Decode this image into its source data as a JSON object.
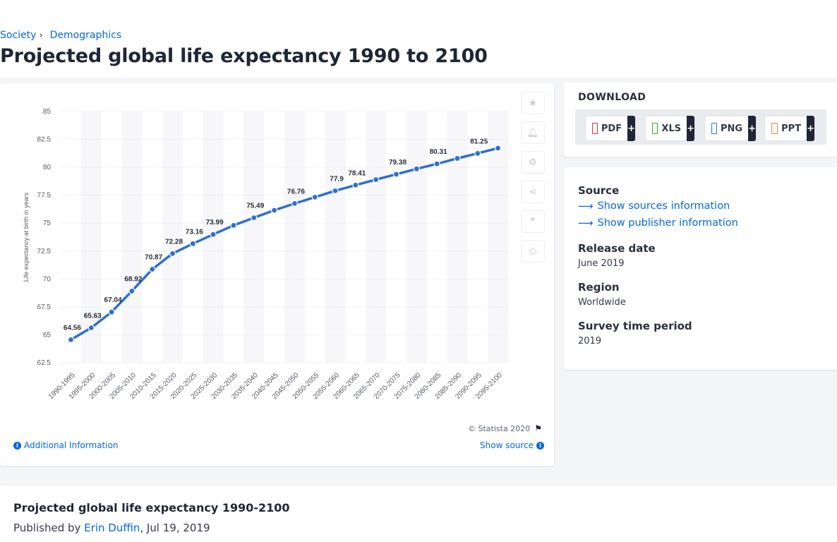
{
  "breadcrumb": {
    "items": [
      "Society",
      "Demographics"
    ],
    "separator": "›"
  },
  "page_title": "Projected global life expectancy 1990 to 2100",
  "chart_data": {
    "type": "line",
    "ylabel": "Life expectancy at birth in years",
    "ylim": [
      62.5,
      85
    ],
    "yticks": [
      "62.5",
      "65",
      "67.5",
      "70",
      "72.5",
      "75",
      "77.5",
      "80",
      "82.5",
      "85"
    ],
    "categories": [
      "1990-1995",
      "1995-2000",
      "2000-2005",
      "2005-2010",
      "2010-2015",
      "2015-2020",
      "2020-2025",
      "2025-2030",
      "2030-2035",
      "2035-2040",
      "2040-2045",
      "2045-2050",
      "2050-2055",
      "2055-2060",
      "2060-2065",
      "2065-2070",
      "2070-2075",
      "2075-2080",
      "2080-2085",
      "2085-2090",
      "2090-2095",
      "2095-2100"
    ],
    "series": [
      {
        "values": [
          64.56,
          65.63,
          67.04,
          68.92,
          70.87,
          72.28,
          73.16,
          73.99,
          74.8,
          75.49,
          76.15,
          76.76,
          77.33,
          77.9,
          78.41,
          78.9,
          79.38,
          79.86,
          80.31,
          80.8,
          81.25,
          81.72
        ],
        "labels": [
          "64.56",
          "65.63",
          "67.04",
          "68.92",
          "70.87",
          "72.28",
          "73.16",
          "73.99",
          "",
          "75.49",
          "",
          "76.76",
          "",
          "77.9",
          "78.41",
          "",
          "79.38",
          "",
          "80.31",
          "",
          "81.25",
          ""
        ]
      }
    ],
    "color": "#2e6fd1",
    "grid": true
  },
  "chart_footer": {
    "copyright": "© Statista 2020",
    "additional_info": "Additional Information",
    "show_source": "Show source"
  },
  "download": {
    "title": "DOWNLOAD",
    "buttons": [
      {
        "label": "PDF"
      },
      {
        "label": "XLS"
      },
      {
        "label": "PNG"
      },
      {
        "label": "PPT"
      }
    ],
    "plus": "+"
  },
  "info": {
    "source_label": "Source",
    "sources_link": "Show sources information",
    "publisher_link": "Show publisher information",
    "release_label": "Release date",
    "release_value": "June 2019",
    "region_label": "Region",
    "region_value": "Worldwide",
    "survey_label": "Survey time period",
    "survey_value": "2019"
  },
  "description": {
    "title": "Projected global life expectancy 1990-2100",
    "published_prefix": "Published by",
    "author": "Erin Duffin",
    "date": ", Jul 19, 2019"
  },
  "tool_icons": [
    "star-icon",
    "bell-icon",
    "gear-icon",
    "share-icon",
    "quote-icon",
    "print-icon"
  ]
}
